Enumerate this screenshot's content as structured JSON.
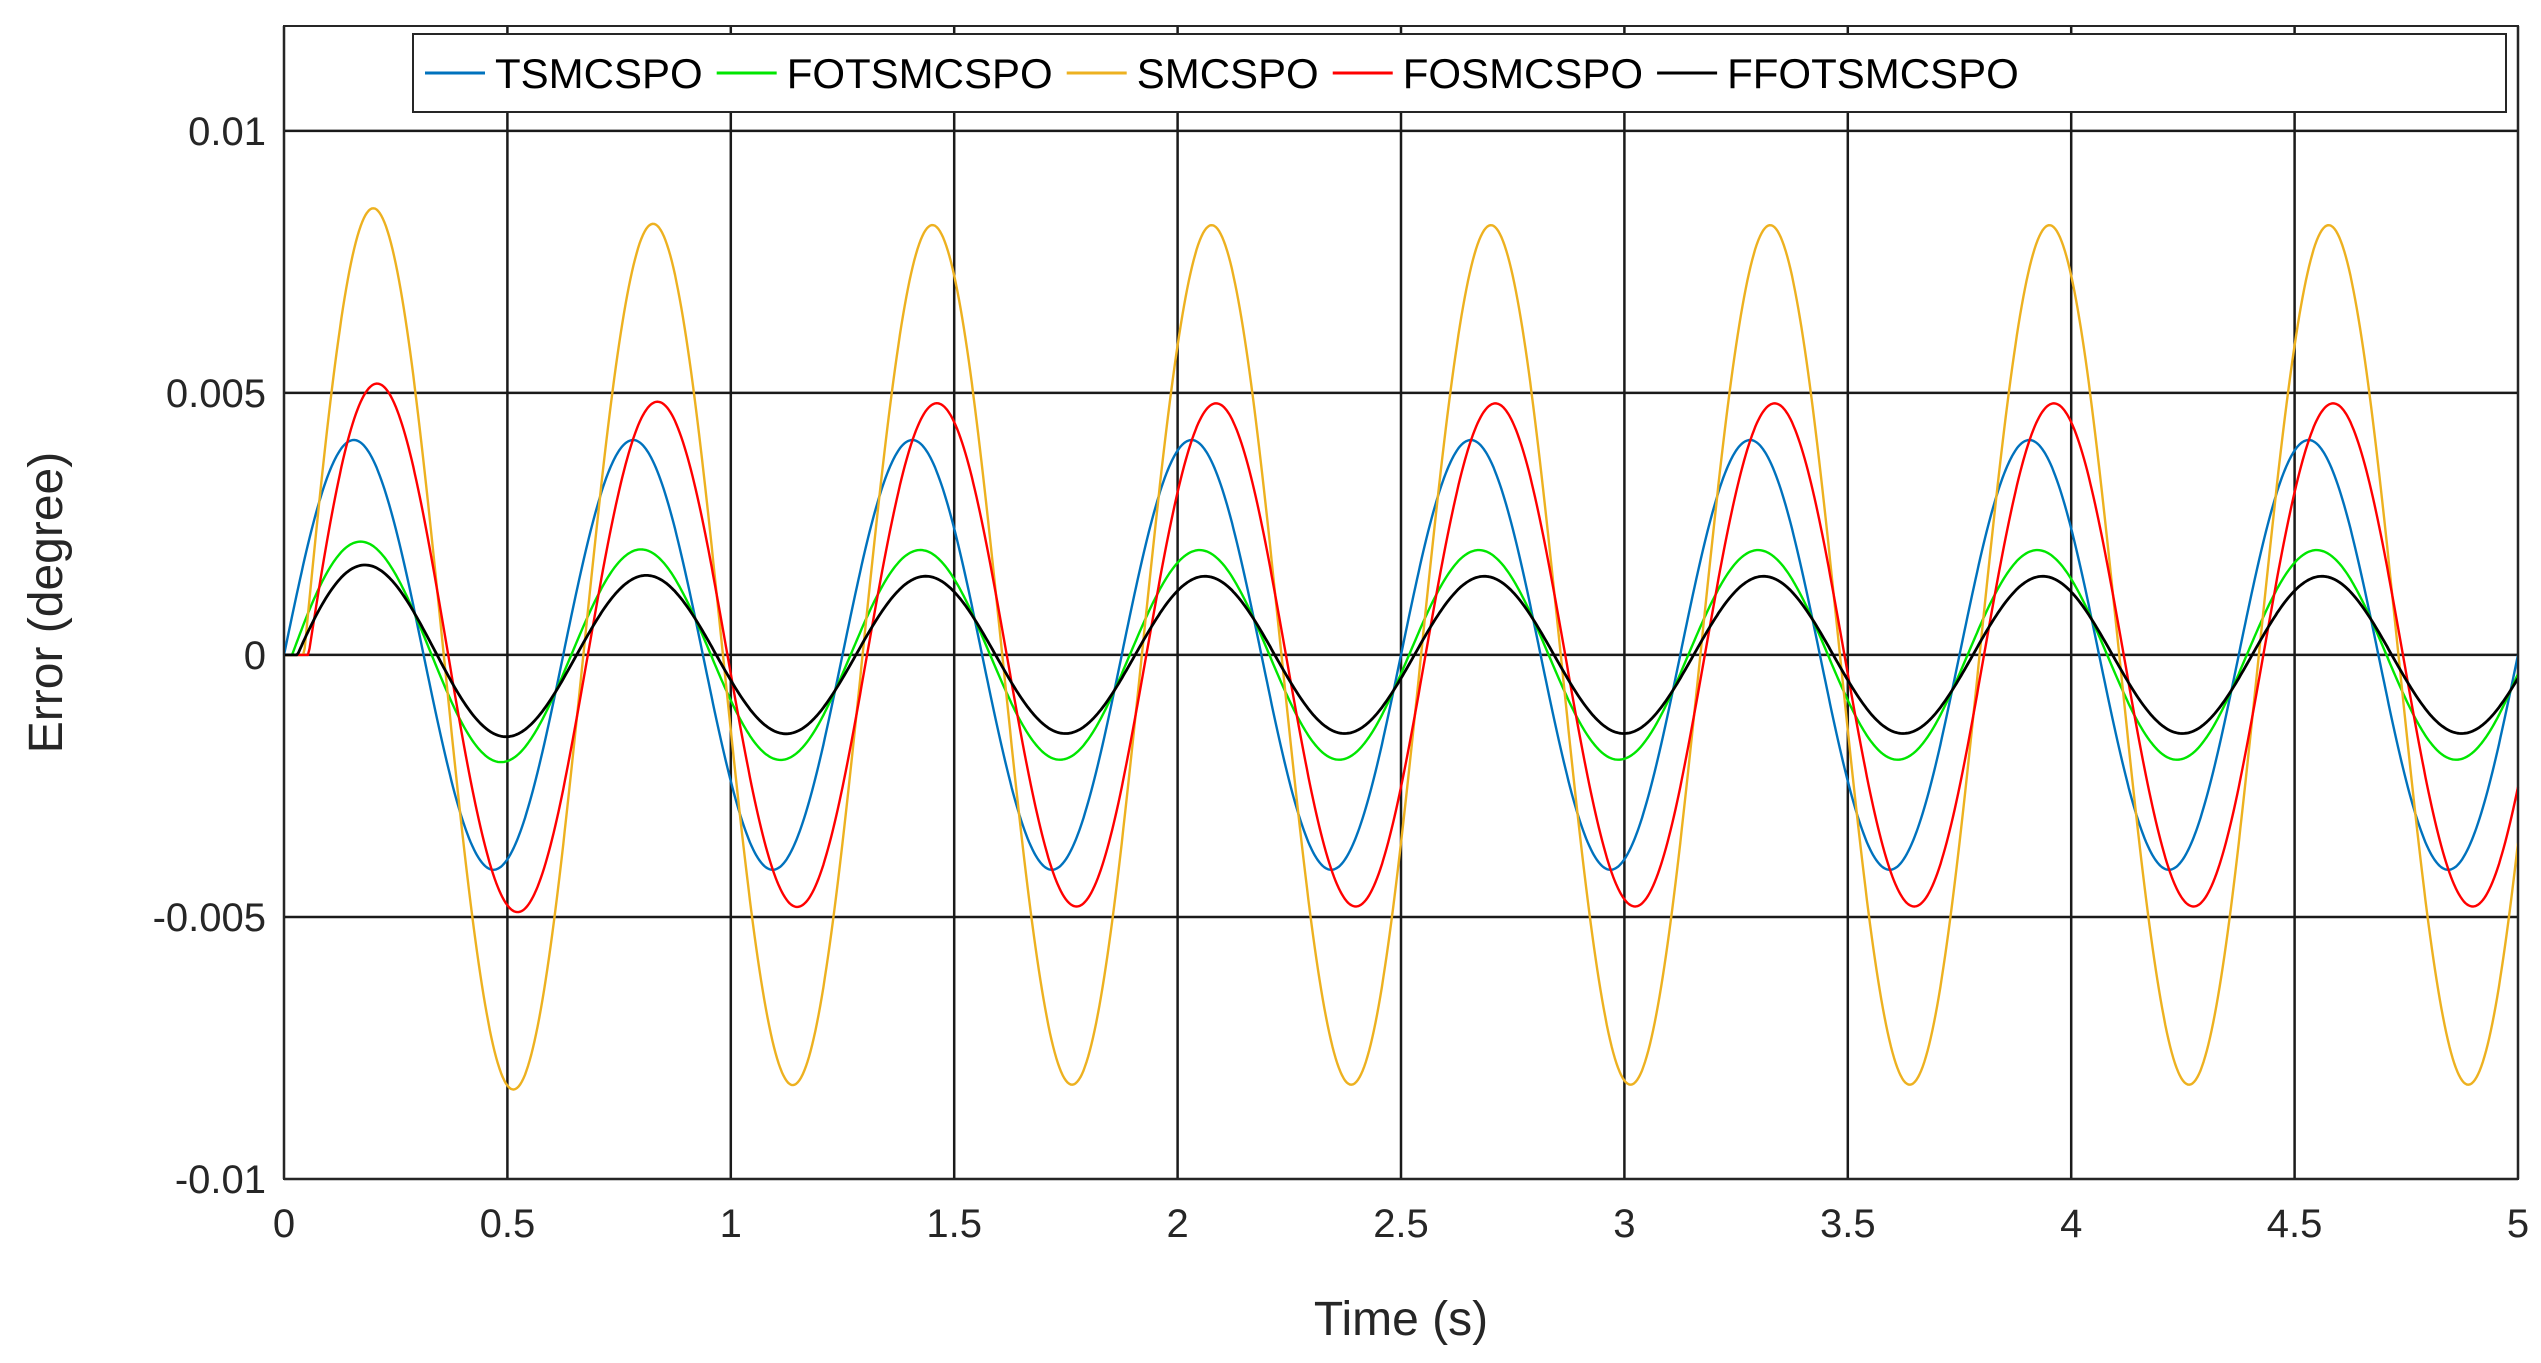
{
  "chart_data": {
    "type": "line",
    "title": "",
    "xlabel": "Time (s)",
    "ylabel": "Error (degree)",
    "xlim": [
      0,
      5
    ],
    "ylim": [
      -0.01,
      0.012
    ],
    "grid": true,
    "legend_position": "top-right",
    "x_ticks": [
      0,
      0.5,
      1,
      1.5,
      2,
      2.5,
      3,
      3.5,
      4,
      4.5,
      5
    ],
    "x_tick_labels": [
      "0",
      "0.5",
      "1",
      "1.5",
      "2",
      "2.5",
      "3",
      "3.5",
      "4",
      "4.5",
      "5"
    ],
    "y_ticks": [
      -0.01,
      -0.005,
      0,
      0.005,
      0.01
    ],
    "y_tick_labels": [
      "-0.01",
      "-0.005",
      "0",
      "0.005",
      "0.01"
    ],
    "series": [
      {
        "name": "TSMCSPO",
        "color": "#0072BD",
        "period": 0.625,
        "phase_delay": 0.0,
        "first_peak": 0.0041,
        "amplitude": 0.0041,
        "peaks": [
          {
            "t": 0.16,
            "e": 0.0041
          },
          {
            "t": 0.47,
            "e": -0.0041
          },
          {
            "t": 0.79,
            "e": 0.0041
          },
          {
            "t": 1.1,
            "e": -0.0041
          },
          {
            "t": 1.41,
            "e": 0.0041
          },
          {
            "t": 1.72,
            "e": -0.0041
          },
          {
            "t": 2.04,
            "e": 0.0041
          },
          {
            "t": 2.35,
            "e": -0.0041
          },
          {
            "t": 2.66,
            "e": 0.0041
          },
          {
            "t": 2.97,
            "e": -0.0041
          },
          {
            "t": 3.29,
            "e": 0.0041
          },
          {
            "t": 3.6,
            "e": -0.0041
          },
          {
            "t": 3.91,
            "e": 0.0041
          },
          {
            "t": 4.22,
            "e": -0.0041
          },
          {
            "t": 4.54,
            "e": 0.0041
          },
          {
            "t": 4.85,
            "e": -0.0041
          }
        ]
      },
      {
        "name": "FOTSMCSPO",
        "color": "#00E600",
        "period": 0.625,
        "phase_delay": 0.018,
        "first_peak": 0.0023,
        "amplitude": 0.002,
        "peaks": [
          {
            "t": 0.18,
            "e": 0.0023
          },
          {
            "t": 0.49,
            "e": -0.002
          },
          {
            "t": 0.81,
            "e": 0.002
          },
          {
            "t": 1.12,
            "e": -0.002
          },
          {
            "t": 1.43,
            "e": 0.002
          },
          {
            "t": 1.74,
            "e": -0.002
          },
          {
            "t": 2.06,
            "e": 0.002
          },
          {
            "t": 2.37,
            "e": -0.002
          },
          {
            "t": 2.68,
            "e": 0.002
          },
          {
            "t": 2.99,
            "e": -0.002
          },
          {
            "t": 3.31,
            "e": 0.002
          },
          {
            "t": 3.62,
            "e": -0.002
          },
          {
            "t": 3.93,
            "e": 0.002
          },
          {
            "t": 4.24,
            "e": -0.002
          },
          {
            "t": 4.56,
            "e": 0.002
          },
          {
            "t": 4.87,
            "e": -0.002
          }
        ]
      },
      {
        "name": "SMCSPO",
        "color": "#EDB120",
        "period": 0.625,
        "phase_delay": 0.045,
        "first_peak": 0.0088,
        "amplitude": 0.0082,
        "peaks": [
          {
            "t": 0.2,
            "e": 0.0088
          },
          {
            "t": 0.52,
            "e": -0.0083
          },
          {
            "t": 0.84,
            "e": 0.0082
          },
          {
            "t": 1.15,
            "e": -0.0083
          },
          {
            "t": 1.46,
            "e": 0.0082
          },
          {
            "t": 1.77,
            "e": -0.0083
          },
          {
            "t": 2.09,
            "e": 0.0082
          },
          {
            "t": 2.4,
            "e": -0.0083
          },
          {
            "t": 2.71,
            "e": 0.0082
          },
          {
            "t": 3.02,
            "e": -0.0083
          },
          {
            "t": 3.34,
            "e": 0.0082
          },
          {
            "t": 3.65,
            "e": -0.0083
          },
          {
            "t": 3.96,
            "e": 0.0082
          },
          {
            "t": 4.27,
            "e": -0.0083
          },
          {
            "t": 4.59,
            "e": 0.0082
          },
          {
            "t": 4.9,
            "e": -0.0083
          }
        ]
      },
      {
        "name": "FOSMCSPO",
        "color": "#FF0000",
        "period": 0.625,
        "phase_delay": 0.055,
        "first_peak": 0.0055,
        "amplitude": 0.0048,
        "peaks": [
          {
            "t": 0.21,
            "e": 0.0055
          },
          {
            "t": 0.53,
            "e": -0.0049
          },
          {
            "t": 0.85,
            "e": 0.0048
          },
          {
            "t": 1.16,
            "e": -0.0049
          },
          {
            "t": 1.47,
            "e": 0.0048
          },
          {
            "t": 1.78,
            "e": -0.0049
          },
          {
            "t": 2.1,
            "e": 0.0048
          },
          {
            "t": 2.41,
            "e": -0.0049
          },
          {
            "t": 2.72,
            "e": 0.0048
          },
          {
            "t": 3.03,
            "e": -0.0049
          },
          {
            "t": 3.35,
            "e": 0.0048
          },
          {
            "t": 3.66,
            "e": -0.0049
          },
          {
            "t": 3.97,
            "e": 0.0048
          },
          {
            "t": 4.28,
            "e": -0.0049
          },
          {
            "t": 4.6,
            "e": 0.0048
          },
          {
            "t": 4.91,
            "e": -0.0049
          }
        ]
      },
      {
        "name": "FFOTSMCSPO",
        "color": "#000000",
        "period": 0.625,
        "phase_delay": 0.03,
        "first_peak": 0.0019,
        "amplitude": 0.0015,
        "peaks": [
          {
            "t": 0.19,
            "e": 0.0019
          },
          {
            "t": 0.51,
            "e": -0.0015
          },
          {
            "t": 0.83,
            "e": 0.0015
          },
          {
            "t": 1.14,
            "e": -0.0015
          },
          {
            "t": 1.45,
            "e": 0.0015
          },
          {
            "t": 1.76,
            "e": -0.0015
          },
          {
            "t": 2.08,
            "e": 0.0015
          },
          {
            "t": 2.39,
            "e": -0.0015
          },
          {
            "t": 2.7,
            "e": 0.0015
          },
          {
            "t": 3.01,
            "e": -0.0015
          },
          {
            "t": 3.33,
            "e": 0.0015
          },
          {
            "t": 3.64,
            "e": -0.0015
          },
          {
            "t": 3.95,
            "e": 0.0015
          },
          {
            "t": 4.26,
            "e": -0.0015
          },
          {
            "t": 4.58,
            "e": 0.0015
          },
          {
            "t": 4.89,
            "e": -0.0015
          }
        ]
      }
    ]
  }
}
